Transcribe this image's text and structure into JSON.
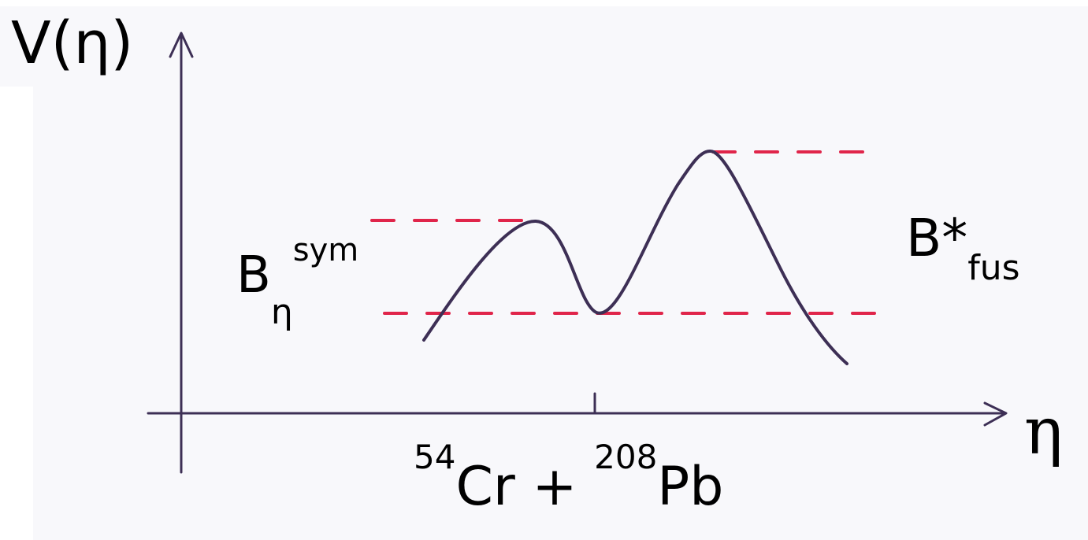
{
  "axes": {
    "y_label": "V(η)",
    "x_label": "η"
  },
  "barrier_symmetric": {
    "base": "B",
    "subscript": "η",
    "superscript": "sym"
  },
  "barrier_fusion": {
    "base": "B*",
    "subscript": "fus"
  },
  "reaction": {
    "mass_1": "54",
    "element_1": "Cr",
    "operator": "+",
    "mass_2": "208",
    "element_2": "Pb"
  },
  "colors": {
    "curve": "#3d2f55",
    "axes": "#3d2f55",
    "dashed_levels": "#e0254a",
    "text": "#000000"
  }
}
